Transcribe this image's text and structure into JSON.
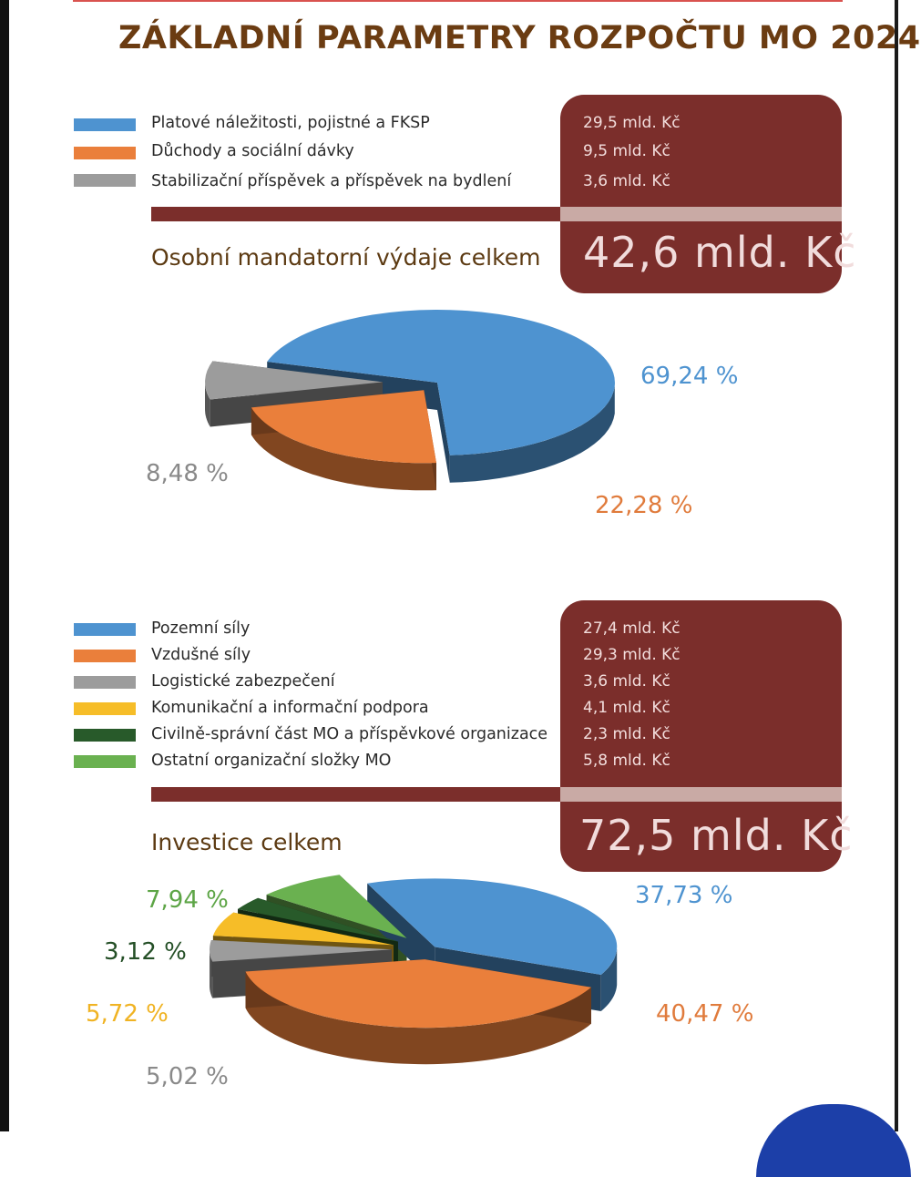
{
  "title": "ZÁKLADNÍ PARAMETRY ROZPOČTU MO 2024",
  "colors": {
    "brown_box": "#7b2e2b",
    "blue": "#4e93d0",
    "orange": "#ea7f3b",
    "gray": "#9c9c9c",
    "yellow": "#f6bd28",
    "dark_green": "#285a2a",
    "green": "#6ab150"
  },
  "chart_data": [
    {
      "type": "pie",
      "title": "Osobní mandatorní výdaje celkem",
      "total": "42,6 mld. Kč",
      "series": [
        {
          "name": "Platové náležitosti, pojistné a FKSP",
          "value": 29.5,
          "value_label": "29,5 mld. Kč",
          "percent": 69.24,
          "percent_label": "69,24 %",
          "color": "#4e93d0"
        },
        {
          "name": "Důchody a sociální dávky",
          "value": 9.5,
          "value_label": "9,5 mld. Kč",
          "percent": 22.28,
          "percent_label": "22,28 %",
          "color": "#ea7f3b"
        },
        {
          "name": "Stabilizační příspěvek a příspěvek na bydlení",
          "value": 3.6,
          "value_label": "3,6 mld. Kč",
          "percent": 8.48,
          "percent_label": "8,48 %",
          "color": "#9c9c9c"
        }
      ]
    },
    {
      "type": "pie",
      "title": "Investice celkem",
      "total": "72,5 mld. Kč",
      "series": [
        {
          "name": "Pozemní síly",
          "value": 27.4,
          "value_label": "27,4 mld. Kč",
          "percent": 37.73,
          "percent_label": "37,73 %",
          "color": "#4e93d0"
        },
        {
          "name": "Vzdušné síly",
          "value": 29.3,
          "value_label": "29,3 mld. Kč",
          "percent": 40.47,
          "percent_label": "40,47 %",
          "color": "#ea7f3b"
        },
        {
          "name": "Logistické zabezpečení",
          "value": 3.6,
          "value_label": "3,6 mld. Kč",
          "percent": 5.02,
          "percent_label": "5,02 %",
          "color": "#9c9c9c"
        },
        {
          "name": "Komunikační a informační podpora",
          "value": 4.1,
          "value_label": "4,1 mld. Kč",
          "percent": 5.72,
          "percent_label": "5,72 %",
          "color": "#f6bd28"
        },
        {
          "name": "Civilně-správní část MO a příspěvkové organizace",
          "value": 2.3,
          "value_label": "2,3 mld. Kč",
          "percent": 3.12,
          "percent_label": "3,12 %",
          "color": "#285a2a"
        },
        {
          "name": "Ostatní organizační složky MO",
          "value": 5.8,
          "value_label": "5,8 mld. Kč",
          "percent": 7.94,
          "percent_label": "7,94 %",
          "color": "#6ab150"
        }
      ]
    }
  ]
}
